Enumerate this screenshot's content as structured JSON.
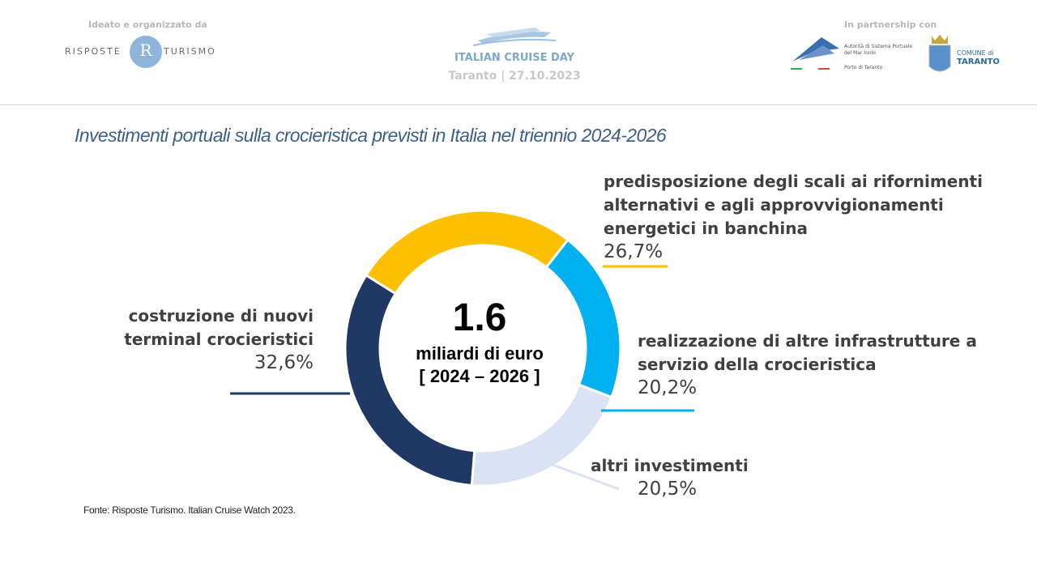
{
  "header": {
    "org_label": "Ideato e organizzato da",
    "partner_label": "In partnership con",
    "rt_left": "RISPOSTE",
    "rt_right": "TURISMO",
    "rt_mark": "R",
    "event_title": "ITALIAN CRUISE DAY",
    "event_subtitle": "Taranto | 27.10.2023",
    "ap_text": "Autorità di Sistema Portuale del Mar Ionio",
    "ap_porto": "Porto di Taranto",
    "comune_line1": "COMUNE di",
    "comune_line2": "TARANTO"
  },
  "subtitle": "Investimenti portuali sulla crocieristica previsti in Italia nel triennio 2024-2026",
  "center": {
    "value": "1.6",
    "line1": "miliardi di euro",
    "line2": "[ 2024 – 2026 ]"
  },
  "source": "Fonte: Risposte Turismo. Italian Cruise Watch 2023.",
  "colors": {
    "yellow": "#fcc000",
    "blue": "#00b0f0",
    "light": "#dae3f3",
    "dark": "#1f3864"
  },
  "chart_data": {
    "type": "pie",
    "variant": "donut",
    "unit": "%",
    "slices": [
      {
        "label_lines": [
          "predisposizione degli scali ai rifornimenti",
          "alternativi e agli approvvigionamenti",
          "energetici in banchina"
        ],
        "value": 26.7,
        "display": "26,7%",
        "color": "#fcc000"
      },
      {
        "label_lines": [
          "realizzazione di altre infrastrutture a",
          "servizio della crocieristica"
        ],
        "value": 20.2,
        "display": "20,2%",
        "color": "#00b0f0"
      },
      {
        "label_lines": [
          "altri investimenti"
        ],
        "value": 20.5,
        "display": "20,5%",
        "color": "#dae3f3"
      },
      {
        "label_lines": [
          "costruzione di nuovi",
          "terminal crocieristici"
        ],
        "value": 32.6,
        "display": "32,6%",
        "color": "#1f3864"
      }
    ]
  }
}
